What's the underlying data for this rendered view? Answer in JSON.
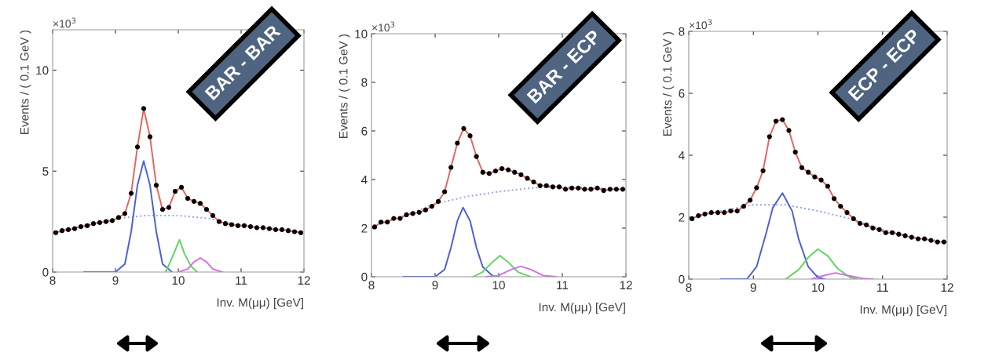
{
  "chart_data": [
    {
      "type": "line",
      "xlabel": "Inv. M(μμ) [GeV]",
      "ylabel": "Events / ( 0.1 GeV )",
      "annotations": [
        "×10$^{3}$",
        "BAR - BAR"
      ],
      "xlim": [
        8,
        12
      ],
      "xticks": [
        8,
        9,
        10,
        11,
        12
      ],
      "ylim": [
        0,
        12
      ],
      "yticks": [
        0,
        5,
        10
      ],
      "grid": false,
      "series": [
        {
          "color": "#8fa0e8",
          "line_style": "dotted",
          "x": [
            8.0,
            8.5,
            9.0,
            9.5,
            10.0,
            10.5,
            11.0,
            11.5,
            12.0
          ],
          "values": [
            1.95,
            2.3,
            2.65,
            2.8,
            2.8,
            2.65,
            2.3,
            2.15,
            1.95
          ]
        },
        {
          "color": "#4a5fd6",
          "line_style": "solid",
          "x": [
            8.5,
            9.0,
            9.15,
            9.25,
            9.35,
            9.45,
            9.55,
            9.65,
            9.75,
            9.9
          ],
          "values": [
            0,
            0,
            0.4,
            2.0,
            4.3,
            5.5,
            4.3,
            2.0,
            0.4,
            0
          ]
        },
        {
          "color": "#5fd65f",
          "line_style": "solid",
          "x": [
            9.8,
            9.9,
            10.02,
            10.1,
            10.2,
            10.3
          ],
          "values": [
            0,
            0.7,
            1.6,
            0.9,
            0.3,
            0
          ]
        },
        {
          "color": "#d070e0",
          "line_style": "solid",
          "x": [
            10.0,
            10.15,
            10.25,
            10.35,
            10.45,
            10.55,
            10.7
          ],
          "values": [
            0,
            0.15,
            0.5,
            0.7,
            0.5,
            0.15,
            0
          ]
        },
        {
          "color": "#e8645c",
          "line_style": "solid",
          "x": [
            8.05,
            8.15,
            8.25,
            8.35,
            8.45,
            8.55,
            8.65,
            8.75,
            8.85,
            8.95,
            9.05,
            9.15,
            9.25,
            9.35,
            9.45,
            9.55,
            9.65,
            9.75,
            9.85,
            9.95,
            10.05,
            10.15,
            10.25,
            10.35,
            10.45,
            10.55,
            10.65,
            10.75,
            10.85,
            10.95,
            11.05,
            11.15,
            11.25,
            11.35,
            11.45,
            11.55,
            11.65,
            11.75,
            11.85,
            11.95
          ],
          "values": [
            1.95,
            2.05,
            2.1,
            2.15,
            2.25,
            2.3,
            2.4,
            2.45,
            2.5,
            2.55,
            2.7,
            2.9,
            3.9,
            6.2,
            8.1,
            6.7,
            4.3,
            3.1,
            3.2,
            4.0,
            4.2,
            3.65,
            3.5,
            3.4,
            3.1,
            2.8,
            2.5,
            2.4,
            2.35,
            2.3,
            2.3,
            2.25,
            2.2,
            2.2,
            2.15,
            2.1,
            2.1,
            2.05,
            2.0,
            1.95
          ]
        },
        {
          "type": "scatter",
          "color": "#000000",
          "marker": "circle",
          "x": [
            8.05,
            8.15,
            8.25,
            8.35,
            8.45,
            8.55,
            8.65,
            8.75,
            8.85,
            8.95,
            9.05,
            9.15,
            9.25,
            9.35,
            9.45,
            9.55,
            9.65,
            9.75,
            9.85,
            9.95,
            10.05,
            10.15,
            10.25,
            10.35,
            10.45,
            10.55,
            10.65,
            10.75,
            10.85,
            10.95,
            11.05,
            11.15,
            11.25,
            11.35,
            11.45,
            11.55,
            11.65,
            11.75,
            11.85,
            11.95
          ],
          "values": [
            1.95,
            2.05,
            2.1,
            2.15,
            2.25,
            2.3,
            2.4,
            2.45,
            2.5,
            2.55,
            2.7,
            2.9,
            3.9,
            6.2,
            8.1,
            6.7,
            4.3,
            3.1,
            3.2,
            4.0,
            4.2,
            3.65,
            3.5,
            3.4,
            3.1,
            2.8,
            2.5,
            2.4,
            2.35,
            2.3,
            2.3,
            2.25,
            2.2,
            2.2,
            2.15,
            2.1,
            2.1,
            2.05,
            2.0,
            1.95
          ]
        }
      ]
    },
    {
      "type": "line",
      "xlabel": "Inv. M(μμ) [GeV]",
      "ylabel": "Events / ( 0.1 GeV )",
      "annotations": [
        "×10$^{3}$",
        "BAR - ECP"
      ],
      "xlim": [
        8,
        12
      ],
      "xticks": [
        8,
        9,
        10,
        11,
        12
      ],
      "ylim": [
        0,
        10
      ],
      "yticks": [
        0,
        2,
        4,
        6,
        8,
        10
      ],
      "grid": false,
      "series": [
        {
          "color": "#8fa0e8",
          "line_style": "dotted",
          "x": [
            8.0,
            8.5,
            9.0,
            9.5,
            10.0,
            10.5,
            11.0,
            11.5,
            12.0
          ],
          "values": [
            2.05,
            2.5,
            3.0,
            3.3,
            3.5,
            3.65,
            3.7,
            3.65,
            3.6
          ]
        },
        {
          "color": "#4a5fd6",
          "line_style": "solid",
          "x": [
            8.5,
            9.0,
            9.15,
            9.25,
            9.35,
            9.44,
            9.55,
            9.65,
            9.75,
            9.9,
            10.0
          ],
          "values": [
            0,
            0,
            0.3,
            1.2,
            2.3,
            2.85,
            2.3,
            1.2,
            0.4,
            0.05,
            0
          ]
        },
        {
          "color": "#5fd65f",
          "line_style": "solid",
          "x": [
            9.6,
            9.75,
            9.9,
            10.02,
            10.15,
            10.3,
            10.5
          ],
          "values": [
            0,
            0.2,
            0.6,
            0.87,
            0.6,
            0.2,
            0
          ]
        },
        {
          "color": "#d070e0",
          "line_style": "solid",
          "x": [
            9.8,
            10.0,
            10.2,
            10.35,
            10.5,
            10.7,
            10.9
          ],
          "values": [
            0,
            0.05,
            0.3,
            0.43,
            0.3,
            0.05,
            0
          ]
        },
        {
          "color": "#e8645c",
          "line_style": "solid",
          "x": [
            8.05,
            8.15,
            8.25,
            8.35,
            8.45,
            8.55,
            8.65,
            8.75,
            8.85,
            8.95,
            9.05,
            9.15,
            9.25,
            9.35,
            9.45,
            9.55,
            9.65,
            9.75,
            9.85,
            9.95,
            10.05,
            10.15,
            10.25,
            10.35,
            10.45,
            10.55,
            10.65,
            10.75,
            10.85,
            10.95,
            11.05,
            11.15,
            11.25,
            11.35,
            11.45,
            11.55,
            11.65,
            11.75,
            11.85,
            11.95
          ],
          "values": [
            2.05,
            2.25,
            2.25,
            2.4,
            2.4,
            2.55,
            2.6,
            2.65,
            2.75,
            2.9,
            3.1,
            3.5,
            4.5,
            5.5,
            6.1,
            5.8,
            4.95,
            4.3,
            4.25,
            4.35,
            4.45,
            4.4,
            4.3,
            4.2,
            4.05,
            3.9,
            3.75,
            3.75,
            3.7,
            3.7,
            3.6,
            3.65,
            3.65,
            3.6,
            3.6,
            3.65,
            3.55,
            3.6,
            3.6,
            3.6
          ]
        },
        {
          "type": "scatter",
          "color": "#000000",
          "marker": "circle",
          "x": [
            8.05,
            8.15,
            8.25,
            8.35,
            8.45,
            8.55,
            8.65,
            8.75,
            8.85,
            8.95,
            9.05,
            9.15,
            9.25,
            9.35,
            9.45,
            9.55,
            9.65,
            9.75,
            9.85,
            9.95,
            10.05,
            10.15,
            10.25,
            10.35,
            10.45,
            10.55,
            10.65,
            10.75,
            10.85,
            10.95,
            11.05,
            11.15,
            11.25,
            11.35,
            11.45,
            11.55,
            11.65,
            11.75,
            11.85,
            11.95
          ],
          "values": [
            2.05,
            2.25,
            2.25,
            2.4,
            2.4,
            2.55,
            2.6,
            2.65,
            2.75,
            2.9,
            3.1,
            3.5,
            4.5,
            5.5,
            6.1,
            5.8,
            4.95,
            4.3,
            4.25,
            4.35,
            4.45,
            4.4,
            4.3,
            4.2,
            4.05,
            3.9,
            3.75,
            3.75,
            3.7,
            3.7,
            3.6,
            3.65,
            3.65,
            3.6,
            3.6,
            3.65,
            3.55,
            3.6,
            3.6,
            3.6
          ]
        }
      ]
    },
    {
      "type": "line",
      "xlabel": "Inv. M(μμ) [GeV]",
      "ylabel": "Events / ( 0.1 GeV )",
      "annotations": [
        "×10$^{3}$",
        "ECP - ECP"
      ],
      "xlim": [
        8,
        12
      ],
      "xticks": [
        8,
        9,
        10,
        11,
        12
      ],
      "ylim": [
        0,
        8
      ],
      "yticks": [
        0,
        2,
        4,
        6,
        8
      ],
      "grid": false,
      "series": [
        {
          "color": "#8fa0e8",
          "line_style": "dotted",
          "x": [
            8.0,
            8.5,
            9.0,
            9.5,
            10.0,
            10.5,
            11.0,
            11.5,
            12.0
          ],
          "values": [
            1.95,
            2.2,
            2.4,
            2.4,
            2.2,
            1.95,
            1.6,
            1.35,
            1.2
          ]
        },
        {
          "color": "#4a5fd6",
          "line_style": "solid",
          "x": [
            8.5,
            8.9,
            9.05,
            9.2,
            9.3,
            9.45,
            9.6,
            9.7,
            9.85,
            10.0,
            10.1
          ],
          "values": [
            0,
            0,
            0.4,
            1.5,
            2.3,
            2.78,
            2.2,
            1.3,
            0.4,
            0.05,
            0
          ]
        },
        {
          "color": "#5fd65f",
          "line_style": "solid",
          "x": [
            9.5,
            9.7,
            9.85,
            10.0,
            10.15,
            10.3,
            10.5,
            10.6
          ],
          "values": [
            0,
            0.3,
            0.7,
            0.97,
            0.75,
            0.35,
            0.05,
            0
          ]
        },
        {
          "color": "#d070e0",
          "line_style": "solid",
          "x": [
            9.9,
            10.1,
            10.27,
            10.45,
            10.7,
            10.85
          ],
          "values": [
            0,
            0.12,
            0.2,
            0.12,
            0.02,
            0
          ]
        },
        {
          "color": "#e8645c",
          "line_style": "solid",
          "x": [
            8.05,
            8.15,
            8.25,
            8.35,
            8.45,
            8.55,
            8.65,
            8.75,
            8.85,
            8.95,
            9.05,
            9.15,
            9.25,
            9.35,
            9.45,
            9.55,
            9.65,
            9.75,
            9.85,
            9.95,
            10.05,
            10.15,
            10.25,
            10.35,
            10.45,
            10.55,
            10.65,
            10.75,
            10.85,
            10.95,
            11.05,
            11.15,
            11.25,
            11.35,
            11.45,
            11.55,
            11.65,
            11.75,
            11.85,
            11.95
          ],
          "values": [
            1.95,
            2.05,
            2.1,
            2.15,
            2.15,
            2.15,
            2.2,
            2.2,
            2.35,
            2.55,
            2.95,
            3.5,
            4.6,
            5.1,
            5.15,
            4.8,
            4.1,
            3.6,
            3.45,
            3.3,
            3.2,
            3.0,
            2.6,
            2.35,
            2.15,
            1.95,
            1.8,
            1.75,
            1.65,
            1.6,
            1.5,
            1.5,
            1.45,
            1.4,
            1.35,
            1.3,
            1.3,
            1.25,
            1.2,
            1.2
          ]
        },
        {
          "type": "scatter",
          "color": "#000000",
          "marker": "circle",
          "x": [
            8.05,
            8.15,
            8.25,
            8.35,
            8.45,
            8.55,
            8.65,
            8.75,
            8.85,
            8.95,
            9.05,
            9.15,
            9.25,
            9.35,
            9.45,
            9.55,
            9.65,
            9.75,
            9.85,
            9.95,
            10.05,
            10.15,
            10.25,
            10.35,
            10.45,
            10.55,
            10.65,
            10.75,
            10.85,
            10.95,
            11.05,
            11.15,
            11.25,
            11.35,
            11.45,
            11.55,
            11.65,
            11.75,
            11.85,
            11.95
          ],
          "values": [
            1.95,
            2.05,
            2.1,
            2.15,
            2.15,
            2.15,
            2.2,
            2.2,
            2.35,
            2.55,
            2.95,
            3.5,
            4.6,
            5.1,
            5.15,
            4.8,
            4.1,
            3.6,
            3.45,
            3.3,
            3.2,
            3.0,
            2.6,
            2.35,
            2.15,
            1.95,
            1.8,
            1.75,
            1.65,
            1.6,
            1.5,
            1.5,
            1.45,
            1.4,
            1.35,
            1.3,
            1.3,
            1.25,
            1.2,
            1.2
          ]
        }
      ]
    }
  ]
}
